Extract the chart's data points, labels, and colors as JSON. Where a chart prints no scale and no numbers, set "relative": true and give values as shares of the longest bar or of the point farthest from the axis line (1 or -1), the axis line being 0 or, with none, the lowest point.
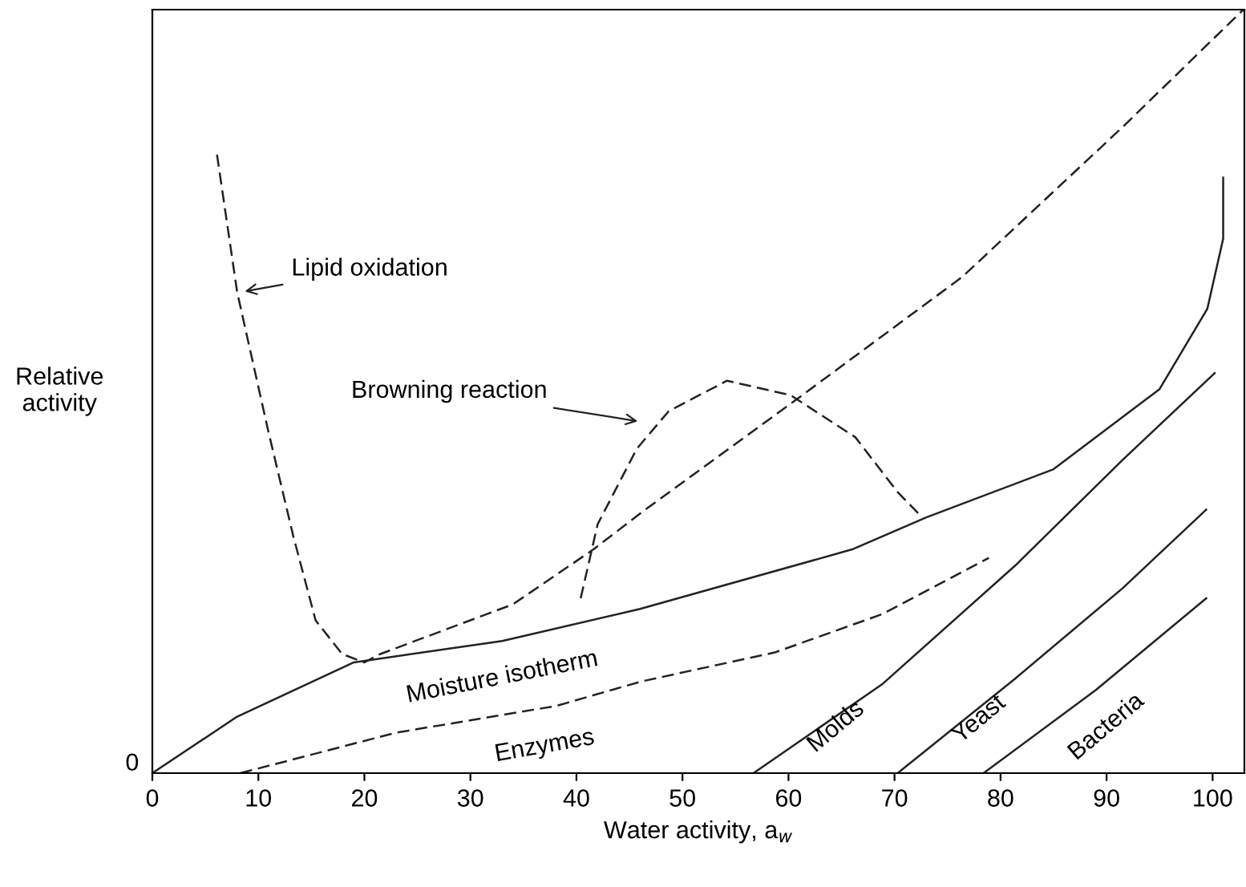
{
  "chart_data": {
    "type": "line",
    "relative": true,
    "xlabel": "Water activity, a$_{w}$",
    "ylabel": "Relative\nactivity",
    "xlim": [
      0,
      103
    ],
    "xticks": [
      0,
      10,
      20,
      30,
      40,
      50,
      60,
      70,
      80,
      90,
      100
    ],
    "annotations": [
      {
        "text": "0",
        "x": 0,
        "y": 0
      }
    ],
    "grid": false,
    "legend": false,
    "marker": "none",
    "series": [
      {
        "name": "Moisture isotherm",
        "color": "#222222",
        "line_style": "solid",
        "x": [
          0,
          8,
          19,
          33,
          46,
          66,
          73,
          85,
          95,
          99.5,
          101,
          101
        ],
        "values": [
          0,
          0.074,
          0.145,
          0.173,
          0.215,
          0.293,
          0.335,
          0.398,
          0.503,
          0.608,
          0.7,
          0.78
        ]
      },
      {
        "name": "Lipid oxidation",
        "color": "#222222",
        "line_style": "dashed",
        "x": [
          6.1,
          8,
          10.9,
          13.3,
          15.4,
          17.9,
          20,
          21.5,
          34,
          41.6,
          46.1,
          61.3,
          76.4,
          91.5,
          102.9
        ],
        "values": [
          0.81,
          0.63,
          0.45,
          0.31,
          0.2,
          0.156,
          0.145,
          0.156,
          0.221,
          0.293,
          0.341,
          0.495,
          0.65,
          0.846,
          1
        ]
      },
      {
        "name": "Browning reaction",
        "color": "#222222",
        "line_style": "dashed",
        "x": [
          40.4,
          42,
          45.7,
          48.7,
          54.2,
          60.2,
          66.3,
          70.3,
          72.6
        ],
        "values": [
          0.229,
          0.326,
          0.425,
          0.474,
          0.514,
          0.495,
          0.44,
          0.368,
          0.335
        ]
      },
      {
        "name": "Enzymes",
        "color": "#222222",
        "line_style": "dashed",
        "x": [
          8.3,
          23,
          38.1,
          46.1,
          58.7,
          68.8,
          78.9
        ],
        "values": [
          0,
          0.053,
          0.088,
          0.12,
          0.158,
          0.208,
          0.282
        ]
      },
      {
        "name": "Molds",
        "color": "#222222",
        "line_style": "solid",
        "x": [
          56.7,
          68.8,
          81.4,
          91.5,
          100.2
        ],
        "values": [
          0,
          0.116,
          0.272,
          0.41,
          0.524
        ]
      },
      {
        "name": "Yeast",
        "color": "#222222",
        "line_style": "solid",
        "x": [
          70.3,
          81.4,
          91.5,
          99.4
        ],
        "values": [
          0,
          0.124,
          0.242,
          0.345
        ]
      },
      {
        "name": "Bacteria",
        "color": "#222222",
        "line_style": "solid",
        "x": [
          78.4,
          89,
          99.4
        ],
        "values": [
          0,
          0.109,
          0.229
        ]
      }
    ]
  }
}
